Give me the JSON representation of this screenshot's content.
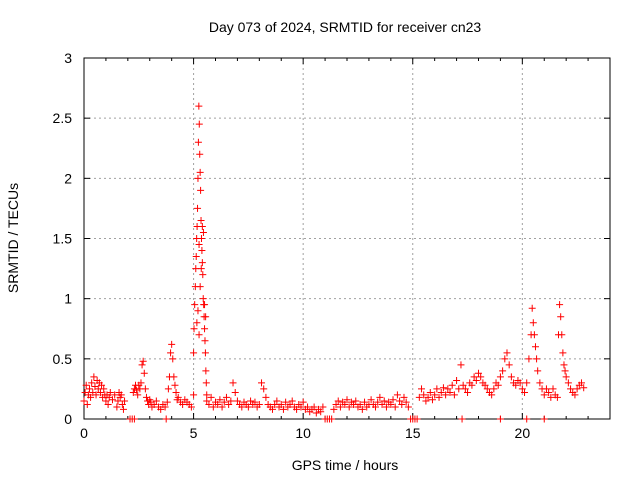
{
  "chart_data": {
    "type": "scatter",
    "title": "Day 073 of 2024, SRMTID for receiver cn23",
    "xlabel": "GPS time / hours",
    "ylabel": "SRMTID / TECUs",
    "xlim": [
      0,
      24
    ],
    "ylim": [
      0,
      3
    ],
    "x_ticks": [
      "0",
      "5",
      "10",
      "15",
      "20"
    ],
    "y_ticks": [
      "0",
      "0.5",
      "1",
      "1.5",
      "2",
      "2.5",
      "3"
    ],
    "grid": true,
    "marker": "+",
    "series_color": "#ff0000",
    "series": [
      {
        "name": "SRMTID",
        "points": [
          [
            0.0,
            0.15
          ],
          [
            0.05,
            0.22
          ],
          [
            0.1,
            0.28
          ],
          [
            0.15,
            0.12
          ],
          [
            0.2,
            0.2
          ],
          [
            0.25,
            0.25
          ],
          [
            0.3,
            0.18
          ],
          [
            0.35,
            0.3
          ],
          [
            0.4,
            0.22
          ],
          [
            0.45,
            0.35
          ],
          [
            0.5,
            0.27
          ],
          [
            0.55,
            0.2
          ],
          [
            0.6,
            0.32
          ],
          [
            0.65,
            0.25
          ],
          [
            0.7,
            0.3
          ],
          [
            0.75,
            0.22
          ],
          [
            0.8,
            0.28
          ],
          [
            0.85,
            0.18
          ],
          [
            0.9,
            0.25
          ],
          [
            0.95,
            0.2
          ],
          [
            1.0,
            0.15
          ],
          [
            1.05,
            0.2
          ],
          [
            1.1,
            0.12
          ],
          [
            1.15,
            0.18
          ],
          [
            1.2,
            0.22
          ],
          [
            1.3,
            0.16
          ],
          [
            1.4,
            0.2
          ],
          [
            1.5,
            0.1
          ],
          [
            1.55,
            0.15
          ],
          [
            1.6,
            0.22
          ],
          [
            1.65,
            0.18
          ],
          [
            1.7,
            0.2
          ],
          [
            1.75,
            0.12
          ],
          [
            1.8,
            0.08
          ],
          [
            1.85,
            0.15
          ],
          [
            2.1,
            0.0
          ],
          [
            2.2,
            0.0
          ],
          [
            2.3,
            0.0
          ],
          [
            2.25,
            0.22
          ],
          [
            2.3,
            0.25
          ],
          [
            2.35,
            0.28
          ],
          [
            2.4,
            0.24
          ],
          [
            2.45,
            0.2
          ],
          [
            2.5,
            0.28
          ],
          [
            2.55,
            0.25
          ],
          [
            2.6,
            0.3
          ],
          [
            2.65,
            0.45
          ],
          [
            2.7,
            0.48
          ],
          [
            2.75,
            0.38
          ],
          [
            2.8,
            0.25
          ],
          [
            2.85,
            0.18
          ],
          [
            2.9,
            0.15
          ],
          [
            2.95,
            0.12
          ],
          [
            3.0,
            0.16
          ],
          [
            3.05,
            0.14
          ],
          [
            3.1,
            0.1
          ],
          [
            3.2,
            0.12
          ],
          [
            3.3,
            0.15
          ],
          [
            3.4,
            0.1
          ],
          [
            3.5,
            0.08
          ],
          [
            3.6,
            0.12
          ],
          [
            3.7,
            0.1
          ],
          [
            3.75,
            0.0
          ],
          [
            3.8,
            0.14
          ],
          [
            3.85,
            0.25
          ],
          [
            3.9,
            0.35
          ],
          [
            3.95,
            0.55
          ],
          [
            4.0,
            0.62
          ],
          [
            4.05,
            0.5
          ],
          [
            4.1,
            0.35
          ],
          [
            4.15,
            0.28
          ],
          [
            4.2,
            0.22
          ],
          [
            4.25,
            0.16
          ],
          [
            4.3,
            0.18
          ],
          [
            4.4,
            0.14
          ],
          [
            4.5,
            0.12
          ],
          [
            4.6,
            0.16
          ],
          [
            4.7,
            0.14
          ],
          [
            4.8,
            0.12
          ],
          [
            4.9,
            0.1
          ],
          [
            5.0,
            0.2
          ],
          [
            5.0,
            0.55
          ],
          [
            5.02,
            0.75
          ],
          [
            5.05,
            0.95
          ],
          [
            5.08,
            1.1
          ],
          [
            5.1,
            1.25
          ],
          [
            5.12,
            1.35
          ],
          [
            5.14,
            1.5
          ],
          [
            5.16,
            1.6
          ],
          [
            5.18,
            1.75
          ],
          [
            5.2,
            2.0
          ],
          [
            5.22,
            2.3
          ],
          [
            5.24,
            2.6
          ],
          [
            5.26,
            2.45
          ],
          [
            5.28,
            2.2
          ],
          [
            5.3,
            2.05
          ],
          [
            5.32,
            1.9
          ],
          [
            5.34,
            1.65
          ],
          [
            5.36,
            1.5
          ],
          [
            5.38,
            1.4
          ],
          [
            5.4,
            1.3
          ],
          [
            5.42,
            1.2
          ],
          [
            5.44,
            1.0
          ],
          [
            5.46,
            0.95
          ],
          [
            5.48,
            0.85
          ],
          [
            5.5,
            0.75
          ],
          [
            5.52,
            0.65
          ],
          [
            5.54,
            0.55
          ],
          [
            5.56,
            0.4
          ],
          [
            5.58,
            0.3
          ],
          [
            5.6,
            0.2
          ],
          [
            5.15,
            0.8
          ],
          [
            5.2,
            0.9
          ],
          [
            5.25,
            0.7
          ],
          [
            5.3,
            1.1
          ],
          [
            5.35,
            1.25
          ],
          [
            5.4,
            1.6
          ],
          [
            5.45,
            1.55
          ],
          [
            5.5,
            0.95
          ],
          [
            5.55,
            0.85
          ],
          [
            5.25,
            1.45
          ],
          [
            5.6,
            0.15
          ],
          [
            5.7,
            0.12
          ],
          [
            5.8,
            0.18
          ],
          [
            5.9,
            0.1
          ],
          [
            6.0,
            0.14
          ],
          [
            6.1,
            0.12
          ],
          [
            6.2,
            0.16
          ],
          [
            6.3,
            0.1
          ],
          [
            6.4,
            0.14
          ],
          [
            6.5,
            0.18
          ],
          [
            6.6,
            0.12
          ],
          [
            6.7,
            0.15
          ],
          [
            6.8,
            0.3
          ],
          [
            6.9,
            0.22
          ],
          [
            7.0,
            0.15
          ],
          [
            7.1,
            0.12
          ],
          [
            7.2,
            0.1
          ],
          [
            7.3,
            0.14
          ],
          [
            7.4,
            0.12
          ],
          [
            7.5,
            0.1
          ],
          [
            7.6,
            0.15
          ],
          [
            7.7,
            0.12
          ],
          [
            7.8,
            0.14
          ],
          [
            7.9,
            0.1
          ],
          [
            8.0,
            0.12
          ],
          [
            8.1,
            0.3
          ],
          [
            8.2,
            0.25
          ],
          [
            8.3,
            0.18
          ],
          [
            8.4,
            0.12
          ],
          [
            8.5,
            0.1
          ],
          [
            8.6,
            0.08
          ],
          [
            8.7,
            0.12
          ],
          [
            8.8,
            0.15
          ],
          [
            8.9,
            0.1
          ],
          [
            9.0,
            0.12
          ],
          [
            9.1,
            0.08
          ],
          [
            9.2,
            0.14
          ],
          [
            9.3,
            0.1
          ],
          [
            9.4,
            0.12
          ],
          [
            9.5,
            0.15
          ],
          [
            9.6,
            0.1
          ],
          [
            9.7,
            0.08
          ],
          [
            9.8,
            0.12
          ],
          [
            9.9,
            0.1
          ],
          [
            10.0,
            0.14
          ],
          [
            10.1,
            0.08
          ],
          [
            10.2,
            0.1
          ],
          [
            10.3,
            0.06
          ],
          [
            10.4,
            0.08
          ],
          [
            10.5,
            0.1
          ],
          [
            10.6,
            0.05
          ],
          [
            10.7,
            0.08
          ],
          [
            10.8,
            0.06
          ],
          [
            10.9,
            0.1
          ],
          [
            11.0,
            0.0
          ],
          [
            11.1,
            0.0
          ],
          [
            11.2,
            0.0
          ],
          [
            11.3,
            0.0
          ],
          [
            11.4,
            0.08
          ],
          [
            11.5,
            0.12
          ],
          [
            11.6,
            0.15
          ],
          [
            11.7,
            0.1
          ],
          [
            11.8,
            0.14
          ],
          [
            11.9,
            0.12
          ],
          [
            12.0,
            0.16
          ],
          [
            12.1,
            0.1
          ],
          [
            12.2,
            0.14
          ],
          [
            12.3,
            0.12
          ],
          [
            12.4,
            0.15
          ],
          [
            12.5,
            0.1
          ],
          [
            12.6,
            0.12
          ],
          [
            12.7,
            0.08
          ],
          [
            12.8,
            0.14
          ],
          [
            12.9,
            0.1
          ],
          [
            13.0,
            0.12
          ],
          [
            13.1,
            0.16
          ],
          [
            13.2,
            0.12
          ],
          [
            13.3,
            0.1
          ],
          [
            13.4,
            0.14
          ],
          [
            13.5,
            0.18
          ],
          [
            13.6,
            0.12
          ],
          [
            13.7,
            0.15
          ],
          [
            13.8,
            0.1
          ],
          [
            13.9,
            0.14
          ],
          [
            14.0,
            0.12
          ],
          [
            14.1,
            0.16
          ],
          [
            14.2,
            0.1
          ],
          [
            14.3,
            0.2
          ],
          [
            14.4,
            0.15
          ],
          [
            14.5,
            0.12
          ],
          [
            14.6,
            0.18
          ],
          [
            14.7,
            0.14
          ],
          [
            14.8,
            0.1
          ],
          [
            14.9,
            0.0
          ],
          [
            15.0,
            0.0
          ],
          [
            15.1,
            0.0
          ],
          [
            15.2,
            0.0
          ],
          [
            15.3,
            0.18
          ],
          [
            15.4,
            0.25
          ],
          [
            15.5,
            0.2
          ],
          [
            15.6,
            0.15
          ],
          [
            15.7,
            0.18
          ],
          [
            15.8,
            0.22
          ],
          [
            15.9,
            0.16
          ],
          [
            16.0,
            0.2
          ],
          [
            16.1,
            0.25
          ],
          [
            16.2,
            0.18
          ],
          [
            16.3,
            0.22
          ],
          [
            16.4,
            0.26
          ],
          [
            16.5,
            0.2
          ],
          [
            16.6,
            0.25
          ],
          [
            16.7,
            0.22
          ],
          [
            16.8,
            0.28
          ],
          [
            16.9,
            0.2
          ],
          [
            17.0,
            0.32
          ],
          [
            17.1,
            0.25
          ],
          [
            17.2,
            0.45
          ],
          [
            17.25,
            0.0
          ],
          [
            17.3,
            0.28
          ],
          [
            17.4,
            0.25
          ],
          [
            17.5,
            0.22
          ],
          [
            17.6,
            0.3
          ],
          [
            17.7,
            0.28
          ],
          [
            17.8,
            0.35
          ],
          [
            17.9,
            0.32
          ],
          [
            18.0,
            0.38
          ],
          [
            18.1,
            0.35
          ],
          [
            18.2,
            0.3
          ],
          [
            18.3,
            0.28
          ],
          [
            18.4,
            0.25
          ],
          [
            18.5,
            0.22
          ],
          [
            18.6,
            0.2
          ],
          [
            18.7,
            0.25
          ],
          [
            18.8,
            0.3
          ],
          [
            18.9,
            0.28
          ],
          [
            19.0,
            0.35
          ],
          [
            19.1,
            0.4
          ],
          [
            19.2,
            0.5
          ],
          [
            19.3,
            0.55
          ],
          [
            19.4,
            0.45
          ],
          [
            19.5,
            0.35
          ],
          [
            19.6,
            0.3
          ],
          [
            19.7,
            0.28
          ],
          [
            19.8,
            0.32
          ],
          [
            19.9,
            0.3
          ],
          [
            20.0,
            0.25
          ],
          [
            20.1,
            0.22
          ],
          [
            20.2,
            0.3
          ],
          [
            20.3,
            0.5
          ],
          [
            20.4,
            0.7
          ],
          [
            20.45,
            0.92
          ],
          [
            20.5,
            0.8
          ],
          [
            20.55,
            0.7
          ],
          [
            20.6,
            0.6
          ],
          [
            20.65,
            0.5
          ],
          [
            20.7,
            0.4
          ],
          [
            20.8,
            0.3
          ],
          [
            20.9,
            0.25
          ],
          [
            21.0,
            0.2
          ],
          [
            21.1,
            0.25
          ],
          [
            21.2,
            0.22
          ],
          [
            21.3,
            0.18
          ],
          [
            21.4,
            0.25
          ],
          [
            21.5,
            0.2
          ],
          [
            21.6,
            0.18
          ],
          [
            21.65,
            0.7
          ],
          [
            21.7,
            0.95
          ],
          [
            21.75,
            0.85
          ],
          [
            21.8,
            0.7
          ],
          [
            21.85,
            0.55
          ],
          [
            21.9,
            0.45
          ],
          [
            21.95,
            0.4
          ],
          [
            22.0,
            0.35
          ],
          [
            22.1,
            0.3
          ],
          [
            22.2,
            0.25
          ],
          [
            22.3,
            0.22
          ],
          [
            22.4,
            0.2
          ],
          [
            22.5,
            0.25
          ],
          [
            22.6,
            0.28
          ],
          [
            22.7,
            0.3
          ],
          [
            22.8,
            0.26
          ],
          [
            19.0,
            0.0
          ],
          [
            20.2,
            0.0
          ],
          [
            21.0,
            0.0
          ]
        ]
      }
    ]
  }
}
